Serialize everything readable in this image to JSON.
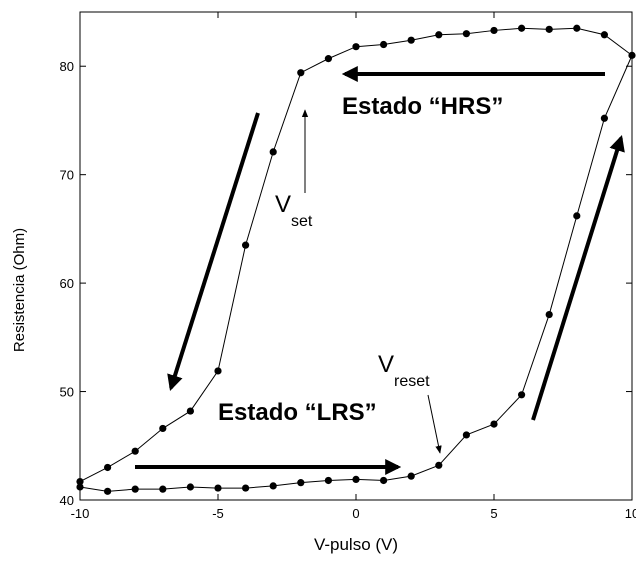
{
  "chart_data": {
    "type": "line",
    "x_label": "V-pulso (V)",
    "y_label": "Resistencia (Ohm)",
    "xlim": [
      -10,
      10
    ],
    "ylim": [
      40,
      85
    ],
    "xticks": [
      -10,
      -5,
      0,
      5,
      10
    ],
    "yticks": [
      40,
      50,
      60,
      70,
      80
    ],
    "series": [
      {
        "color": "#000000",
        "x": [
          -10,
          -9,
          -8,
          -7,
          -6,
          -5,
          -4,
          -3,
          -2,
          -1,
          0,
          1,
          2,
          3,
          4,
          5,
          6,
          7,
          8,
          9,
          10,
          9,
          8,
          7,
          6,
          5,
          4,
          3,
          2,
          1,
          0,
          -1,
          -2,
          -3,
          -4,
          -5,
          -6,
          -7,
          -8,
          -9,
          -10
        ],
        "values": [
          41.2,
          40.8,
          41.0,
          41.0,
          41.2,
          41.1,
          41.1,
          41.3,
          41.6,
          41.8,
          41.9,
          41.8,
          42.2,
          43.2,
          46.0,
          47.0,
          49.7,
          57.1,
          66.2,
          75.2,
          81.0,
          82.9,
          83.5,
          83.4,
          83.5,
          83.3,
          83.0,
          82.9,
          82.4,
          82.0,
          81.8,
          80.7,
          79.4,
          72.1,
          63.5,
          51.9,
          48.2,
          46.6,
          44.5,
          43.0,
          41.7
        ]
      }
    ],
    "annotations": [
      {
        "text": "Estado “HRS”"
      },
      {
        "text": "Estado “LRS”"
      },
      {
        "text": "V",
        "sub": "set"
      },
      {
        "text": "V",
        "sub": "reset"
      }
    ]
  }
}
